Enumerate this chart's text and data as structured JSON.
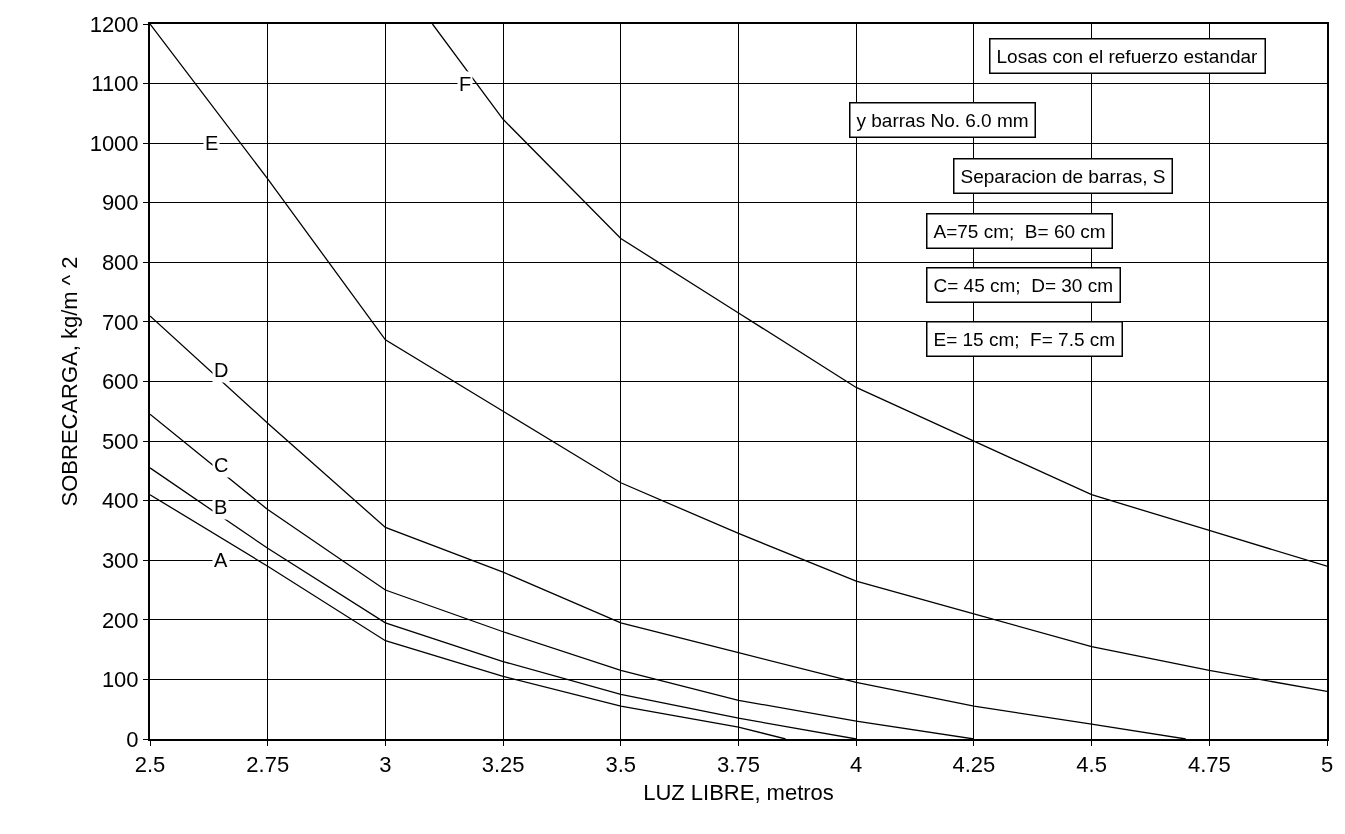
{
  "chart_data": {
    "type": "line",
    "xlabel": "LUZ LIBRE, metros",
    "ylabel": "SOBRECARGA, kg/m ^ 2",
    "xlim": [
      2.5,
      5
    ],
    "xticks": [
      2.5,
      2.75,
      3,
      3.25,
      3.5,
      3.75,
      4,
      4.25,
      4.5,
      4.75,
      5
    ],
    "ylim": [
      0,
      1200
    ],
    "yticks": [
      0,
      100,
      200,
      300,
      400,
      500,
      600,
      700,
      800,
      900,
      1000,
      1100,
      1200
    ],
    "grid": true,
    "marker": "none",
    "line_style": "solid",
    "series": [
      {
        "color": "#000000",
        "x": [
          2.5,
          2.75,
          3,
          3.25,
          3.5,
          3.75,
          3.85
        ],
        "values": [
          410,
          290,
          165,
          105,
          55,
          20,
          0
        ]
      },
      {
        "color": "#000000",
        "x": [
          2.5,
          2.75,
          3,
          3.25,
          3.5,
          3.75,
          4
        ],
        "values": [
          455,
          320,
          195,
          130,
          75,
          35,
          0
        ]
      },
      {
        "color": "#000000",
        "x": [
          2.5,
          2.75,
          3,
          3.25,
          3.5,
          3.75,
          4,
          4.25
        ],
        "values": [
          545,
          385,
          250,
          180,
          115,
          65,
          30,
          0
        ]
      },
      {
        "color": "#000000",
        "x": [
          2.5,
          2.75,
          3,
          3.25,
          3.5,
          3.75,
          4,
          4.25,
          4.5,
          4.7
        ],
        "values": [
          710,
          530,
          355,
          280,
          195,
          145,
          95,
          55,
          25,
          0
        ]
      },
      {
        "color": "#000000",
        "x": [
          2.5,
          2.75,
          3,
          3.25,
          3.5,
          3.75,
          4,
          4.25,
          4.5,
          4.75,
          5
        ],
        "values": [
          1200,
          940,
          670,
          550,
          430,
          345,
          265,
          210,
          155,
          115,
          80
        ]
      },
      {
        "color": "#000000",
        "x": [
          3.1,
          3.25,
          3.5,
          3.75,
          4,
          4.25,
          4.5,
          4.75,
          5
        ],
        "values": [
          1200,
          1040,
          840,
          715,
          590,
          500,
          410,
          350,
          290
        ]
      }
    ],
    "annotations": [
      {
        "text": "A",
        "x": 2.65,
        "y": 300
      },
      {
        "text": "B",
        "x": 2.65,
        "y": 390
      },
      {
        "text": "C",
        "x": 2.65,
        "y": 460
      },
      {
        "text": "D",
        "x": 2.65,
        "y": 620
      },
      {
        "text": "E",
        "x": 2.63,
        "y": 1000
      },
      {
        "text": "F",
        "x": 3.17,
        "y": 1100
      },
      "Losas con el refuerzo estandar",
      "y barras No. 6.0 mm",
      "Separacion de barras, S",
      "A=75 cm;  B= 60 cm",
      "C= 45 cm;  D= 30 cm",
      "E= 15 cm;  F= 7.5 cm"
    ]
  }
}
